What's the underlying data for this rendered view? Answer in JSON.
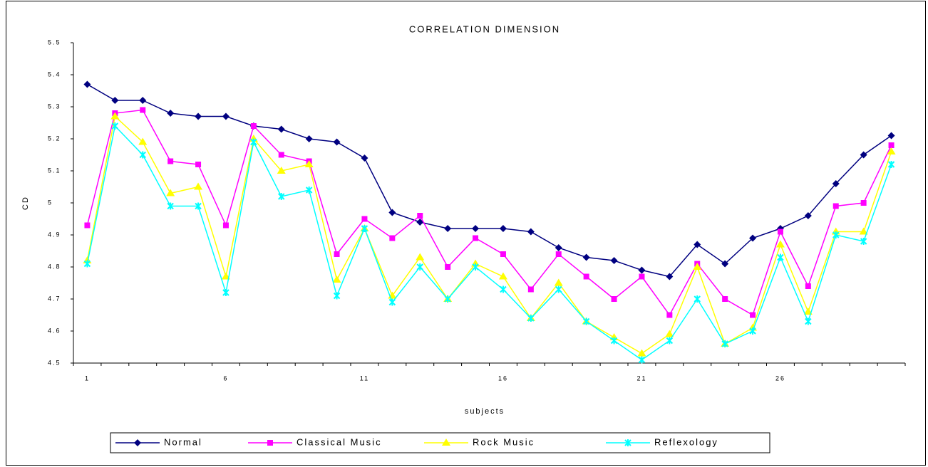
{
  "chart_data": {
    "type": "line",
    "title": "CORRELATION DIMENSION",
    "xlabel": "subjects",
    "ylabel": "CD",
    "categories": [
      "1",
      null,
      null,
      null,
      null,
      "6",
      null,
      null,
      null,
      null,
      "11",
      null,
      null,
      null,
      null,
      "16",
      null,
      null,
      null,
      null,
      "21",
      null,
      null,
      null,
      null,
      "26",
      null,
      null,
      null,
      null
    ],
    "ylim": [
      4.5,
      5.5
    ],
    "yticks": [
      4.5,
      4.6,
      4.7,
      4.8,
      4.9,
      5,
      5.1,
      5.2,
      5.3,
      5.4,
      5.5
    ],
    "legend": "bottom",
    "series": [
      {
        "name": "Normal",
        "color": "#000080",
        "marker": "diamond",
        "values": [
          5.37,
          5.32,
          5.32,
          5.28,
          5.27,
          5.27,
          5.24,
          5.23,
          5.2,
          5.19,
          5.14,
          4.97,
          4.94,
          4.92,
          4.92,
          4.92,
          4.91,
          4.86,
          4.83,
          4.82,
          4.79,
          4.77,
          4.87,
          4.81,
          4.89,
          4.92,
          4.96,
          5.06,
          5.15,
          5.21
        ]
      },
      {
        "name": "Classical Music",
        "color": "#ff00ff",
        "marker": "square",
        "values": [
          4.93,
          5.28,
          5.29,
          5.13,
          5.12,
          4.93,
          5.24,
          5.15,
          5.13,
          4.84,
          4.95,
          4.89,
          4.96,
          4.8,
          4.89,
          4.84,
          4.73,
          4.84,
          4.77,
          4.7,
          4.77,
          4.65,
          4.81,
          4.7,
          4.65,
          4.91,
          4.74,
          4.99,
          5.0,
          5.18
        ]
      },
      {
        "name": "Rock Music",
        "color": "#ffff00",
        "marker": "triangle",
        "values": [
          4.82,
          5.27,
          5.19,
          5.03,
          5.05,
          4.77,
          5.2,
          5.1,
          5.12,
          4.76,
          4.92,
          4.71,
          4.83,
          4.7,
          4.81,
          4.77,
          4.64,
          4.75,
          4.63,
          4.58,
          4.53,
          4.59,
          4.8,
          4.56,
          4.61,
          4.87,
          4.66,
          4.91,
          4.91,
          5.16
        ]
      },
      {
        "name": "Reflexology",
        "color": "#00ffff",
        "marker": "x",
        "values": [
          4.81,
          5.24,
          5.15,
          4.99,
          4.99,
          4.72,
          5.19,
          5.02,
          5.04,
          4.71,
          4.92,
          4.69,
          4.8,
          4.7,
          4.8,
          4.73,
          4.64,
          4.73,
          4.63,
          4.57,
          4.51,
          4.57,
          4.7,
          4.56,
          4.6,
          4.83,
          4.63,
          4.9,
          4.88,
          5.12
        ]
      }
    ]
  }
}
